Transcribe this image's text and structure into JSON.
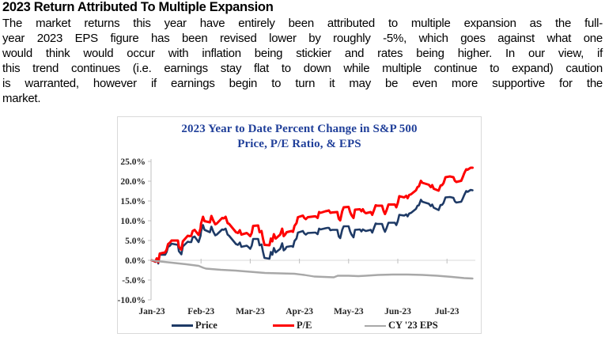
{
  "document": {
    "heading": "2023 Return Attributed To Multiple Expansion",
    "body_lines": [
      "The market returns this year have entirely been attributed to multiple expansion as the full-",
      "year 2023 EPS figure has been revised lower by roughly -5%, which goes against what one",
      "would think would occur with inflation being stickier and rates being higher. In our view, if",
      "this trend continues (i.e. earnings stay flat to down while multiple continue to expand) caution",
      "is warranted, however if earnings begin to turn it may be even more supportive for the",
      "market."
    ]
  },
  "chart_data": {
    "type": "line",
    "title_lines": [
      "2023 Year to Date Percent Change in S&P 500",
      "Price, P/E Ratio, & EPS"
    ],
    "title_color": "#21409a",
    "ylabel": "",
    "xlabel": "",
    "ylim": [
      -10,
      25
    ],
    "y_tick_labels": [
      "25.0%",
      "20.0%",
      "15.0%",
      "10.0%",
      "5.0%",
      "0.0%",
      "-5.0%",
      "-10.0%"
    ],
    "y_tick_values": [
      25,
      20,
      15,
      10,
      5,
      0,
      -5,
      -10
    ],
    "x_tick_labels": [
      "Jan-23",
      "Feb-23",
      "Mar-23",
      "Apr-23",
      "May-23",
      "Jun-23",
      "Jul-23"
    ],
    "grid": "zero-line-only",
    "axis_color": "#bfbfbf",
    "gridline_color": "#d9d9d9",
    "legend_position": "bottom",
    "x_unit": "month-fraction (0 = Jan-23 start, 6.5 = mid Jul-23)",
    "y_unit": "percent change year-to-date",
    "series": [
      {
        "name": "Price",
        "color": "#1e3a66",
        "stroke_width": 2.6,
        "points": [
          [
            0.0,
            0.0
          ],
          [
            0.07,
            -0.4
          ],
          [
            0.1,
            0.3
          ],
          [
            0.13,
            -0.8
          ],
          [
            0.16,
            1.4
          ],
          [
            0.27,
            1.4
          ],
          [
            0.3,
            2.1
          ],
          [
            0.33,
            3.4
          ],
          [
            0.37,
            3.7
          ],
          [
            0.4,
            4.2
          ],
          [
            0.53,
            3.9
          ],
          [
            0.55,
            2.3
          ],
          [
            0.6,
            1.5
          ],
          [
            0.63,
            3.5
          ],
          [
            0.73,
            4.7
          ],
          [
            0.77,
            4.6
          ],
          [
            0.8,
            4.6
          ],
          [
            0.83,
            5.8
          ],
          [
            0.87,
            6.0
          ],
          [
            0.95,
            4.6
          ],
          [
            0.99,
            6.2
          ],
          [
            1.0,
            7.3
          ],
          [
            1.04,
            8.9
          ],
          [
            1.07,
            7.7
          ],
          [
            1.18,
            7.1
          ],
          [
            1.21,
            8.5
          ],
          [
            1.25,
            7.2
          ],
          [
            1.29,
            6.3
          ],
          [
            1.32,
            6.5
          ],
          [
            1.43,
            7.8
          ],
          [
            1.46,
            7.7
          ],
          [
            1.5,
            8.0
          ],
          [
            1.54,
            6.5
          ],
          [
            1.57,
            6.2
          ],
          [
            1.71,
            4.1
          ],
          [
            1.75,
            3.9
          ],
          [
            1.79,
            4.5
          ],
          [
            1.82,
            3.4
          ],
          [
            1.93,
            3.7
          ],
          [
            1.96,
            3.4
          ],
          [
            2.0,
            2.9
          ],
          [
            2.03,
            3.7
          ],
          [
            2.06,
            5.4
          ],
          [
            2.16,
            5.4
          ],
          [
            2.19,
            3.8
          ],
          [
            2.23,
            4.0
          ],
          [
            2.26,
            2.1
          ],
          [
            2.29,
            0.6
          ],
          [
            2.39,
            0.4
          ],
          [
            2.42,
            2.1
          ],
          [
            2.45,
            1.4
          ],
          [
            2.48,
            3.1
          ],
          [
            2.52,
            2.0
          ],
          [
            2.61,
            2.9
          ],
          [
            2.65,
            4.3
          ],
          [
            2.68,
            2.5
          ],
          [
            2.71,
            2.8
          ],
          [
            2.74,
            3.4
          ],
          [
            2.84,
            3.6
          ],
          [
            2.87,
            3.4
          ],
          [
            2.9,
            4.9
          ],
          [
            2.94,
            5.5
          ],
          [
            2.97,
            7.0
          ],
          [
            3.07,
            7.4
          ],
          [
            3.1,
            6.8
          ],
          [
            3.13,
            6.5
          ],
          [
            3.17,
            6.9
          ],
          [
            3.3,
            7.0
          ],
          [
            3.33,
            7.0
          ],
          [
            3.37,
            6.6
          ],
          [
            3.4,
            8.0
          ],
          [
            3.43,
            7.8
          ],
          [
            3.53,
            8.1
          ],
          [
            3.57,
            8.2
          ],
          [
            3.6,
            8.2
          ],
          [
            3.63,
            7.6
          ],
          [
            3.67,
            7.7
          ],
          [
            3.77,
            7.7
          ],
          [
            3.8,
            6.0
          ],
          [
            3.83,
            5.6
          ],
          [
            3.87,
            7.7
          ],
          [
            3.9,
            8.6
          ],
          [
            4.0,
            8.6
          ],
          [
            4.03,
            7.3
          ],
          [
            4.06,
            6.5
          ],
          [
            4.1,
            5.8
          ],
          [
            4.13,
            7.7
          ],
          [
            4.23,
            7.8
          ],
          [
            4.26,
            7.3
          ],
          [
            4.29,
            7.8
          ],
          [
            4.32,
            7.6
          ],
          [
            4.35,
            7.4
          ],
          [
            4.45,
            7.7
          ],
          [
            4.48,
            7.0
          ],
          [
            4.52,
            8.3
          ],
          [
            4.55,
            9.3
          ],
          [
            4.58,
            9.2
          ],
          [
            4.68,
            9.2
          ],
          [
            4.71,
            8.0
          ],
          [
            4.74,
            7.2
          ],
          [
            4.77,
            8.1
          ],
          [
            4.81,
            9.5
          ],
          [
            4.94,
            9.5
          ],
          [
            4.97,
            8.9
          ],
          [
            5.0,
            9.9
          ],
          [
            5.03,
            11.5
          ],
          [
            5.13,
            11.3
          ],
          [
            5.17,
            11.6
          ],
          [
            5.2,
            11.1
          ],
          [
            5.23,
            11.8
          ],
          [
            5.27,
            12.0
          ],
          [
            5.37,
            13.0
          ],
          [
            5.4,
            13.8
          ],
          [
            5.43,
            13.9
          ],
          [
            5.47,
            15.3
          ],
          [
            5.5,
            14.8
          ],
          [
            5.63,
            14.3
          ],
          [
            5.67,
            13.7
          ],
          [
            5.7,
            14.1
          ],
          [
            5.73,
            13.3
          ],
          [
            5.83,
            12.7
          ],
          [
            5.87,
            14.0
          ],
          [
            5.9,
            14.0
          ],
          [
            5.93,
            14.5
          ],
          [
            5.97,
            15.9
          ],
          [
            6.06,
            16.0
          ],
          [
            6.13,
            15.8
          ],
          [
            6.16,
            14.9
          ],
          [
            6.19,
            14.6
          ],
          [
            6.29,
            14.8
          ],
          [
            6.32,
            15.6
          ],
          [
            6.35,
            16.5
          ],
          [
            6.39,
            17.5
          ],
          [
            6.42,
            17.3
          ],
          [
            6.48,
            17.8
          ],
          [
            6.52,
            17.7
          ]
        ]
      },
      {
        "name": "P/E",
        "color": "#fe0000",
        "stroke_width": 3,
        "points": [
          [
            0.0,
            0.0
          ],
          [
            0.07,
            -0.3
          ],
          [
            0.1,
            0.5
          ],
          [
            0.13,
            -0.5
          ],
          [
            0.16,
            1.7
          ],
          [
            0.27,
            2.0
          ],
          [
            0.3,
            2.7
          ],
          [
            0.33,
            4.1
          ],
          [
            0.37,
            4.5
          ],
          [
            0.4,
            5.0
          ],
          [
            0.53,
            5.0
          ],
          [
            0.55,
            3.4
          ],
          [
            0.6,
            2.7
          ],
          [
            0.63,
            4.8
          ],
          [
            0.73,
            6.2
          ],
          [
            0.77,
            6.1
          ],
          [
            0.8,
            6.2
          ],
          [
            0.83,
            7.4
          ],
          [
            0.87,
            7.7
          ],
          [
            0.95,
            6.4
          ],
          [
            0.99,
            8.1
          ],
          [
            1.0,
            9.3
          ],
          [
            1.04,
            11.0
          ],
          [
            1.07,
            9.9
          ],
          [
            1.18,
            9.6
          ],
          [
            1.21,
            11.2
          ],
          [
            1.25,
            10.0
          ],
          [
            1.29,
            9.1
          ],
          [
            1.32,
            9.3
          ],
          [
            1.43,
            10.7
          ],
          [
            1.46,
            10.6
          ],
          [
            1.5,
            11.0
          ],
          [
            1.54,
            9.4
          ],
          [
            1.57,
            9.2
          ],
          [
            1.71,
            7.1
          ],
          [
            1.75,
            6.9
          ],
          [
            1.79,
            7.6
          ],
          [
            1.82,
            6.5
          ],
          [
            1.93,
            6.9
          ],
          [
            1.96,
            6.6
          ],
          [
            2.0,
            6.1
          ],
          [
            2.03,
            6.9
          ],
          [
            2.06,
            8.7
          ],
          [
            2.16,
            8.8
          ],
          [
            2.19,
            7.1
          ],
          [
            2.23,
            7.4
          ],
          [
            2.26,
            5.4
          ],
          [
            2.29,
            3.9
          ],
          [
            2.39,
            3.8
          ],
          [
            2.42,
            5.5
          ],
          [
            2.45,
            4.8
          ],
          [
            2.48,
            6.6
          ],
          [
            2.52,
            5.5
          ],
          [
            2.61,
            6.5
          ],
          [
            2.65,
            8.0
          ],
          [
            2.68,
            6.1
          ],
          [
            2.71,
            6.5
          ],
          [
            2.74,
            7.1
          ],
          [
            2.84,
            7.4
          ],
          [
            2.87,
            7.2
          ],
          [
            2.9,
            8.7
          ],
          [
            2.94,
            9.4
          ],
          [
            2.97,
            10.9
          ],
          [
            3.07,
            11.3
          ],
          [
            3.1,
            10.7
          ],
          [
            3.13,
            10.4
          ],
          [
            3.17,
            10.9
          ],
          [
            3.3,
            11.1
          ],
          [
            3.33,
            11.1
          ],
          [
            3.37,
            10.7
          ],
          [
            3.4,
            12.2
          ],
          [
            3.43,
            12.0
          ],
          [
            3.53,
            12.4
          ],
          [
            3.57,
            12.5
          ],
          [
            3.6,
            12.6
          ],
          [
            3.63,
            12.0
          ],
          [
            3.67,
            12.1
          ],
          [
            3.77,
            12.2
          ],
          [
            3.8,
            10.5
          ],
          [
            3.83,
            10.1
          ],
          [
            3.87,
            12.4
          ],
          [
            3.9,
            13.4
          ],
          [
            4.0,
            13.5
          ],
          [
            4.03,
            12.2
          ],
          [
            4.06,
            11.4
          ],
          [
            4.1,
            10.7
          ],
          [
            4.13,
            12.8
          ],
          [
            4.23,
            12.9
          ],
          [
            4.26,
            12.4
          ],
          [
            4.29,
            12.9
          ],
          [
            4.32,
            12.2
          ],
          [
            4.35,
            11.9
          ],
          [
            4.45,
            12.2
          ],
          [
            4.48,
            11.5
          ],
          [
            4.52,
            12.8
          ],
          [
            4.55,
            13.9
          ],
          [
            4.58,
            13.8
          ],
          [
            4.68,
            13.8
          ],
          [
            4.71,
            12.5
          ],
          [
            4.74,
            11.7
          ],
          [
            4.77,
            12.6
          ],
          [
            4.81,
            14.1
          ],
          [
            4.94,
            14.1
          ],
          [
            4.97,
            13.4
          ],
          [
            5.0,
            14.5
          ],
          [
            5.03,
            16.2
          ],
          [
            5.13,
            15.9
          ],
          [
            5.17,
            16.3
          ],
          [
            5.2,
            15.7
          ],
          [
            5.23,
            16.5
          ],
          [
            5.27,
            16.7
          ],
          [
            5.37,
            17.7
          ],
          [
            5.4,
            18.5
          ],
          [
            5.43,
            18.7
          ],
          [
            5.47,
            20.1
          ],
          [
            5.5,
            19.6
          ],
          [
            5.63,
            19.1
          ],
          [
            5.67,
            18.5
          ],
          [
            5.7,
            19.0
          ],
          [
            5.73,
            18.1
          ],
          [
            5.83,
            17.6
          ],
          [
            5.87,
            18.9
          ],
          [
            5.9,
            19.0
          ],
          [
            5.93,
            19.5
          ],
          [
            5.97,
            21.0
          ],
          [
            6.06,
            21.2
          ],
          [
            6.13,
            21.0
          ],
          [
            6.16,
            20.1
          ],
          [
            6.19,
            19.8
          ],
          [
            6.29,
            20.1
          ],
          [
            6.32,
            21.0
          ],
          [
            6.35,
            22.0
          ],
          [
            6.39,
            23.0
          ],
          [
            6.42,
            22.9
          ],
          [
            6.48,
            23.4
          ],
          [
            6.52,
            23.4
          ]
        ]
      },
      {
        "name": "CY '23 EPS",
        "color": "#a8a8a8",
        "stroke_width": 2.4,
        "points": [
          [
            0.0,
            0.0
          ],
          [
            0.1,
            -0.2
          ],
          [
            0.4,
            -0.6
          ],
          [
            0.7,
            -1.0
          ],
          [
            0.95,
            -1.4
          ],
          [
            1.05,
            -1.9
          ],
          [
            1.1,
            -2.1
          ],
          [
            1.4,
            -2.4
          ],
          [
            1.7,
            -2.6
          ],
          [
            2.0,
            -2.9
          ],
          [
            2.3,
            -3.2
          ],
          [
            2.6,
            -3.3
          ],
          [
            2.9,
            -3.4
          ],
          [
            3.1,
            -3.7
          ],
          [
            3.3,
            -4.1
          ],
          [
            3.5,
            -4.2
          ],
          [
            3.7,
            -4.3
          ],
          [
            3.78,
            -3.9
          ],
          [
            4.0,
            -3.9
          ],
          [
            4.2,
            -4.0
          ],
          [
            4.35,
            -3.9
          ],
          [
            4.6,
            -3.7
          ],
          [
            4.9,
            -3.6
          ],
          [
            5.2,
            -3.6
          ],
          [
            5.5,
            -3.7
          ],
          [
            5.8,
            -3.9
          ],
          [
            6.1,
            -4.2
          ],
          [
            6.35,
            -4.5
          ],
          [
            6.52,
            -4.6
          ]
        ]
      }
    ]
  }
}
